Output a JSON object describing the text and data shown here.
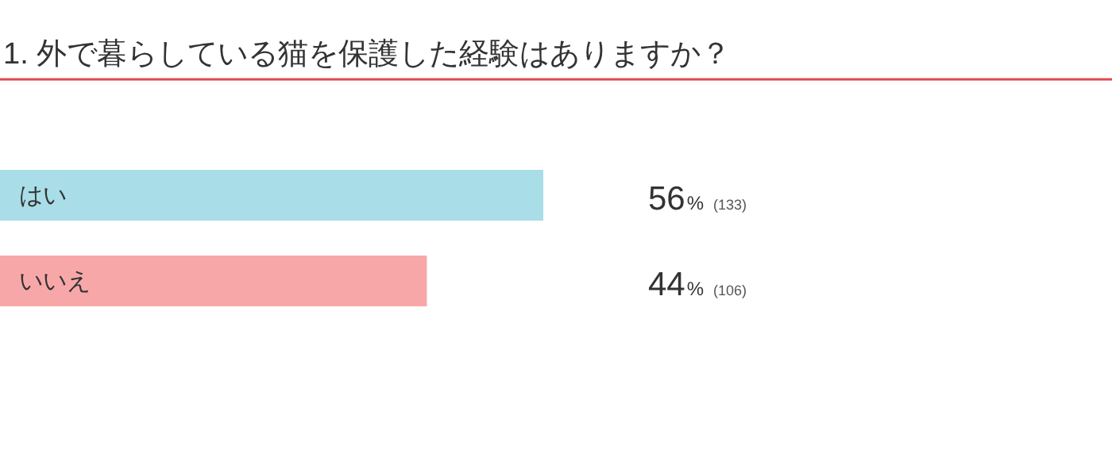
{
  "chart_data": {
    "type": "bar",
    "orientation": "horizontal",
    "title": "1. 外で暮らしている猫を保護した経験はありますか？",
    "categories": [
      "はい",
      "いいえ"
    ],
    "values": [
      56,
      44
    ],
    "colors": [
      "#a9dde8",
      "#f8a7a9"
    ],
    "value_labels": [
      "56% (133)",
      "44% (106)"
    ]
  }
}
